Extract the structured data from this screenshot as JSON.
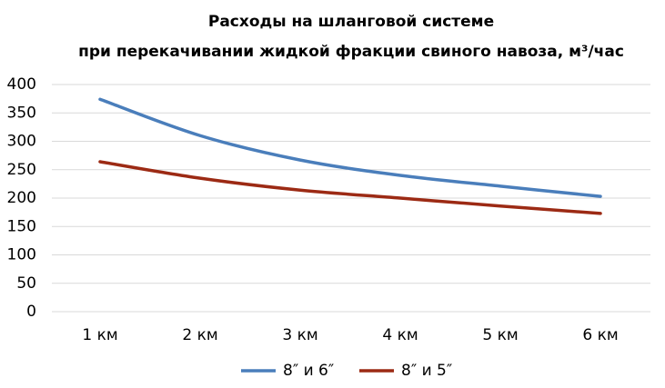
{
  "chart_data": {
    "type": "line",
    "title": "Расходы на шланговой системе",
    "subtitle": "при перекачивании жидкой фракции свиного навоза, м³/час",
    "categories": [
      "1 км",
      "2 км",
      "3 км",
      "4 км",
      "5 км",
      "6 км"
    ],
    "series": [
      {
        "name": "8″ и 6″",
        "color": "#4a7ebb",
        "values": [
          374,
          310,
          267,
          240,
          221,
          203
        ]
      },
      {
        "name": "8″ и 5″",
        "color": "#9c2a14",
        "values": [
          264,
          235,
          214,
          200,
          186,
          173
        ]
      }
    ],
    "ylim": [
      0,
      400
    ],
    "yticks": [
      0,
      50,
      100,
      150,
      200,
      250,
      300,
      350,
      400
    ],
    "grid": true,
    "legend": "bottom",
    "smooth": true
  }
}
